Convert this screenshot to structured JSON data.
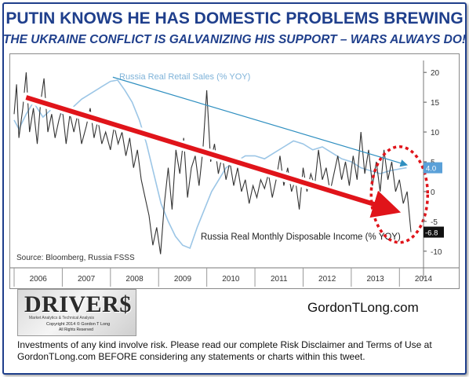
{
  "header": {
    "title": "PUTIN KNOWS HE HAS DOMESTIC PROBLEMS BREWING",
    "subtitle": "THE UKRAINE CONFLICT IS GALVANIZING HIS SUPPORT – WARS ALWAYS DO!"
  },
  "colors": {
    "headline": "#1f3f8c",
    "retail_sales_line": "#9cc6e6",
    "income_line": "#333333",
    "trend_arrow": "#e0141a",
    "retail_trend": "#2f8fc0",
    "highlight_circle": "#e0141a"
  },
  "chart_data": {
    "type": "line",
    "source": "Source: Bloomberg, Russia FSSS",
    "x_labels": [
      "2006",
      "2007",
      "2008",
      "2009",
      "2010",
      "2011",
      "2012",
      "2013",
      "2014"
    ],
    "xlim": [
      2006.0,
      2014.5
    ],
    "ylim": [
      -12,
      22
    ],
    "yticks": [
      20,
      15,
      10,
      5,
      0,
      -5,
      -10
    ],
    "ytick_labels": [
      "20",
      "15",
      "10",
      "5",
      "0",
      "-5",
      "-10"
    ],
    "series": [
      {
        "name": "Russia Real Retail Sales (% YOY)",
        "last_value_label": "4.0",
        "points": [
          [
            2006.0,
            12.0
          ],
          [
            2006.1,
            10.5
          ],
          [
            2006.25,
            13.0
          ],
          [
            2006.4,
            15.0
          ],
          [
            2006.6,
            12.5
          ],
          [
            2006.8,
            14.0
          ],
          [
            2007.0,
            13.0
          ],
          [
            2007.2,
            14.0
          ],
          [
            2007.4,
            15.5
          ],
          [
            2007.6,
            16.5
          ],
          [
            2007.8,
            17.5
          ],
          [
            2008.0,
            18.5
          ],
          [
            2008.15,
            18.7
          ],
          [
            2008.3,
            17.0
          ],
          [
            2008.45,
            15.0
          ],
          [
            2008.6,
            12.0
          ],
          [
            2008.75,
            8.0
          ],
          [
            2008.9,
            3.0
          ],
          [
            2009.05,
            -2.0
          ],
          [
            2009.2,
            -5.0
          ],
          [
            2009.35,
            -7.5
          ],
          [
            2009.5,
            -9.0
          ],
          [
            2009.65,
            -9.5
          ],
          [
            2009.8,
            -6.0
          ],
          [
            2009.95,
            -3.0
          ],
          [
            2010.1,
            0.0
          ],
          [
            2010.25,
            2.0
          ],
          [
            2010.4,
            4.0
          ],
          [
            2010.6,
            5.0
          ],
          [
            2010.8,
            6.0
          ],
          [
            2011.0,
            6.0
          ],
          [
            2011.2,
            5.5
          ],
          [
            2011.4,
            6.5
          ],
          [
            2011.6,
            7.5
          ],
          [
            2011.8,
            8.5
          ],
          [
            2012.0,
            8.0
          ],
          [
            2012.2,
            7.0
          ],
          [
            2012.4,
            7.5
          ],
          [
            2012.6,
            6.5
          ],
          [
            2012.8,
            5.5
          ],
          [
            2013.0,
            5.0
          ],
          [
            2013.2,
            4.0
          ],
          [
            2013.4,
            3.5
          ],
          [
            2013.6,
            3.0
          ],
          [
            2013.8,
            3.5
          ],
          [
            2014.0,
            3.8
          ],
          [
            2014.15,
            4.0
          ]
        ]
      },
      {
        "name": "Russia Real Monthly Disposable Income (% YOY)",
        "last_value_label": "-6.8",
        "points": [
          [
            2006.0,
            13.0
          ],
          [
            2006.05,
            18.0
          ],
          [
            2006.1,
            9.0
          ],
          [
            2006.18,
            14.0
          ],
          [
            2006.25,
            20.0
          ],
          [
            2006.32,
            10.0
          ],
          [
            2006.4,
            14.0
          ],
          [
            2006.48,
            8.0
          ],
          [
            2006.55,
            15.0
          ],
          [
            2006.62,
            19.0
          ],
          [
            2006.7,
            10.0
          ],
          [
            2006.78,
            13.0
          ],
          [
            2006.85,
            9.0
          ],
          [
            2006.93,
            12.0
          ],
          [
            2007.0,
            14.0
          ],
          [
            2007.08,
            8.0
          ],
          [
            2007.16,
            13.0
          ],
          [
            2007.24,
            10.0
          ],
          [
            2007.32,
            13.0
          ],
          [
            2007.4,
            8.0
          ],
          [
            2007.5,
            11.0
          ],
          [
            2007.58,
            14.0
          ],
          [
            2007.66,
            9.0
          ],
          [
            2007.74,
            12.0
          ],
          [
            2007.82,
            8.0
          ],
          [
            2007.9,
            10.0
          ],
          [
            2008.0,
            7.0
          ],
          [
            2008.08,
            11.0
          ],
          [
            2008.16,
            8.0
          ],
          [
            2008.24,
            10.0
          ],
          [
            2008.32,
            6.0
          ],
          [
            2008.4,
            9.0
          ],
          [
            2008.48,
            4.0
          ],
          [
            2008.56,
            7.0
          ],
          [
            2008.64,
            2.0
          ],
          [
            2008.72,
            -1.0
          ],
          [
            2008.8,
            -4.0
          ],
          [
            2008.88,
            -9.0
          ],
          [
            2008.96,
            -6.0
          ],
          [
            2009.04,
            -10.5
          ],
          [
            2009.12,
            -2.0
          ],
          [
            2009.2,
            4.0
          ],
          [
            2009.28,
            -3.0
          ],
          [
            2009.36,
            7.0
          ],
          [
            2009.44,
            3.0
          ],
          [
            2009.52,
            9.0
          ],
          [
            2009.6,
            -1.0
          ],
          [
            2009.68,
            4.0
          ],
          [
            2009.76,
            6.0
          ],
          [
            2009.84,
            1.0
          ],
          [
            2009.92,
            7.0
          ],
          [
            2010.0,
            17.0
          ],
          [
            2010.08,
            5.0
          ],
          [
            2010.16,
            8.0
          ],
          [
            2010.24,
            3.0
          ],
          [
            2010.32,
            6.0
          ],
          [
            2010.4,
            2.0
          ],
          [
            2010.48,
            5.0
          ],
          [
            2010.56,
            1.0
          ],
          [
            2010.64,
            4.0
          ],
          [
            2010.72,
            0.0
          ],
          [
            2010.8,
            2.0
          ],
          [
            2010.88,
            -2.0
          ],
          [
            2010.96,
            1.0
          ],
          [
            2011.04,
            -1.0
          ],
          [
            2011.12,
            2.0
          ],
          [
            2011.2,
            0.5
          ],
          [
            2011.28,
            3.0
          ],
          [
            2011.36,
            -1.0
          ],
          [
            2011.44,
            2.0
          ],
          [
            2011.52,
            6.0
          ],
          [
            2011.6,
            1.0
          ],
          [
            2011.68,
            4.0
          ],
          [
            2011.76,
            0.0
          ],
          [
            2011.84,
            2.0
          ],
          [
            2011.92,
            -3.0
          ],
          [
            2012.0,
            4.0
          ],
          [
            2012.08,
            0.0
          ],
          [
            2012.16,
            3.0
          ],
          [
            2012.24,
            1.0
          ],
          [
            2012.32,
            7.0
          ],
          [
            2012.4,
            2.0
          ],
          [
            2012.48,
            4.0
          ],
          [
            2012.56,
            0.0
          ],
          [
            2012.64,
            3.0
          ],
          [
            2012.72,
            6.0
          ],
          [
            2012.8,
            2.0
          ],
          [
            2012.88,
            5.0
          ],
          [
            2012.96,
            1.0
          ],
          [
            2013.04,
            6.0
          ],
          [
            2013.12,
            2.0
          ],
          [
            2013.2,
            10.0
          ],
          [
            2013.28,
            3.0
          ],
          [
            2013.36,
            7.0
          ],
          [
            2013.44,
            1.0
          ],
          [
            2013.52,
            5.0
          ],
          [
            2013.6,
            0.0
          ],
          [
            2013.68,
            7.0
          ],
          [
            2013.76,
            2.0
          ],
          [
            2013.84,
            5.0
          ],
          [
            2013.92,
            0.0
          ],
          [
            2014.0,
            2.0
          ],
          [
            2014.08,
            -2.0
          ],
          [
            2014.16,
            0.0
          ],
          [
            2014.24,
            -6.8
          ]
        ]
      }
    ],
    "annotations": [
      "red downward trend arrow across income series",
      "blue downward trend line on retail sales",
      "red dotted circle around 2013-2014 data"
    ]
  },
  "branding": {
    "logo_word": "DRIVER$",
    "logo_subtitle": "Market Analytics & Technical Analysis",
    "logo_copyright": "Copyright 2014 © Gordon T Long",
    "logo_rights": "All Rights Reserved",
    "website": "GordonTLong.com"
  },
  "disclaimer": "Investments of any kind involve risk. Please read our complete Risk Disclaimer and Terms of Use at GordonTLong.com  BEFORE considering any statements or charts within this tweet."
}
